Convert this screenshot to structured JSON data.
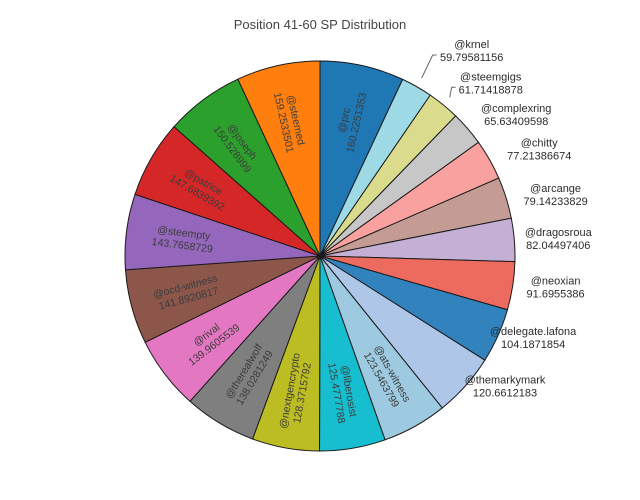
{
  "chart": {
    "styles": {
      "background": "#ffffff",
      "title_color": "#444444",
      "inside_label_color": "#3c3c3c",
      "outside_label_color": "#2b2b2b",
      "slice_border_color": "#1a1a1a",
      "leader_line_color": "#666666"
    }
  },
  "chart_data": {
    "type": "pie",
    "title": "Position 41-60 SP Distribution",
    "unit": "SP",
    "direction": "clockwise",
    "start_angle_deg": 0,
    "legend": false,
    "slices": [
      {
        "label": "@prc",
        "value": 160.2251353,
        "display": "160.2251353",
        "color": "#1f77b4",
        "label_position": "inside"
      },
      {
        "label": "@krnel",
        "value": 59.79581156,
        "display": "59.79581156",
        "color": "#9edae5",
        "label_position": "outside"
      },
      {
        "label": "@steemgigs",
        "value": 61.71418878,
        "display": "61.71418878",
        "color": "#dbdb8d",
        "label_position": "outside"
      },
      {
        "label": "@complexring",
        "value": 65.63409598,
        "display": "65.63409598",
        "color": "#c7c7c7",
        "label_position": "outside"
      },
      {
        "label": "@chitty",
        "value": 77.21386674,
        "display": "77.21386674",
        "color": "#f9a19e",
        "label_position": "outside"
      },
      {
        "label": "@arcange",
        "value": 79.14233829,
        "display": "79.14233829",
        "color": "#c49c94",
        "label_position": "outside"
      },
      {
        "label": "@dragosroua",
        "value": 82.04497406,
        "display": "82.04497406",
        "color": "#c5b0d5",
        "label_position": "outside"
      },
      {
        "label": "@neoxian",
        "value": 91.6955386,
        "display": "91.6955386",
        "color": "#ed6a5e",
        "label_position": "outside"
      },
      {
        "label": "@delegate.lafona",
        "value": 104.1871854,
        "display": "104.1871854",
        "color": "#3182bd",
        "label_position": "outside"
      },
      {
        "label": "@themarkymark",
        "value": 120.6612183,
        "display": "120.6612183",
        "color": "#aec7e8",
        "label_position": "outside"
      },
      {
        "label": "@ats-witness",
        "value": 123.5463799,
        "display": "123.5463799",
        "color": "#9ecae1",
        "label_position": "inside"
      },
      {
        "label": "@liberosist",
        "value": 125.4777788,
        "display": "125.4777788",
        "color": "#17becf",
        "label_position": "inside"
      },
      {
        "label": "@nextgencrypto",
        "value": 128.3715792,
        "display": "128.3715792",
        "color": "#bcbd22",
        "label_position": "inside"
      },
      {
        "label": "@therealwolf",
        "value": 138.0281249,
        "display": "138.0281249",
        "color": "#7f7f7f",
        "label_position": "inside"
      },
      {
        "label": "@rival",
        "value": 139.9605539,
        "display": "139.9605539",
        "color": "#e377c2",
        "label_position": "inside"
      },
      {
        "label": "@ocd-witness",
        "value": 141.8920817,
        "display": "141.8920817",
        "color": "#8c564b",
        "label_position": "inside"
      },
      {
        "label": "@steempty",
        "value": 143.7658729,
        "display": "143.7658729",
        "color": "#9467bd",
        "label_position": "inside"
      },
      {
        "label": "@patrice",
        "value": 147.6839392,
        "display": "147.6839392",
        "color": "#d62728",
        "label_position": "inside"
      },
      {
        "label": "@joseph",
        "value": 150.528999,
        "display": "150.528999",
        "color": "#2ca02c",
        "label_position": "inside"
      },
      {
        "label": "@steemed",
        "value": 159.2533501,
        "display": "159.2533501",
        "color": "#ff7f0e",
        "label_position": "inside"
      }
    ]
  }
}
